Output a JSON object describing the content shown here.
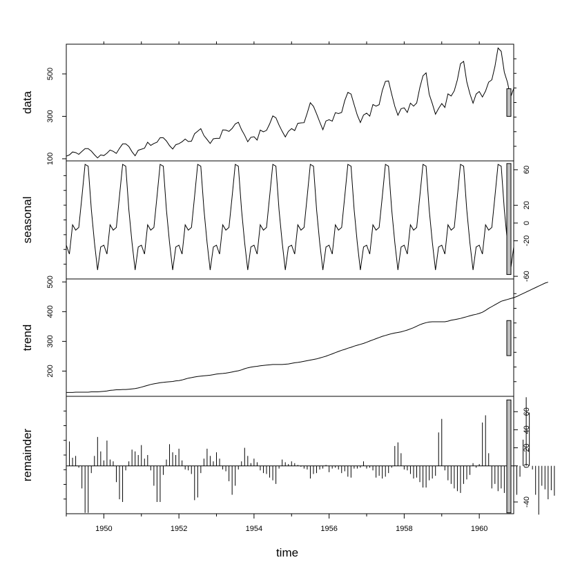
{
  "chart_data": {
    "type": "line",
    "title": "",
    "xlabel": "time",
    "x_range": [
      1949.0,
      1960.917
    ],
    "x_ticks": [
      "1950",
      "1952",
      "1954",
      "1956",
      "1958",
      "1960"
    ],
    "start_year": 1949,
    "frequency": 12,
    "panels": [
      {
        "name": "data",
        "type": "line",
        "ylabel": "data",
        "ylim": [
          90,
          640
        ],
        "y_ticks": [
          "100",
          "300",
          "500"
        ],
        "y_axis_side": "left",
        "range_bar": [
          300,
          430
        ],
        "values": [
          112,
          118,
          132,
          129,
          121,
          135,
          148,
          148,
          136,
          119,
          104,
          118,
          115,
          126,
          141,
          135,
          125,
          149,
          170,
          170,
          158,
          133,
          114,
          140,
          145,
          150,
          178,
          163,
          172,
          178,
          199,
          199,
          184,
          162,
          146,
          166,
          171,
          180,
          193,
          181,
          183,
          218,
          230,
          242,
          209,
          191,
          172,
          194,
          196,
          196,
          236,
          235,
          229,
          243,
          264,
          272,
          237,
          211,
          180,
          201,
          204,
          188,
          235,
          227,
          234,
          264,
          302,
          293,
          259,
          229,
          203,
          229,
          242,
          233,
          267,
          269,
          270,
          315,
          364,
          347,
          312,
          274,
          237,
          278,
          284,
          277,
          317,
          313,
          318,
          374,
          413,
          405,
          355,
          306,
          271,
          306,
          315,
          301,
          356,
          348,
          355,
          422,
          465,
          467,
          404,
          347,
          305,
          336,
          340,
          318,
          362,
          348,
          363,
          435,
          491,
          505,
          404,
          359,
          310,
          337,
          360,
          342,
          406,
          396,
          420,
          472,
          548,
          559,
          463,
          407,
          362,
          405,
          417,
          391,
          419,
          461,
          472,
          535,
          622,
          606,
          508,
          461,
          390,
          432
        ]
      },
      {
        "name": "seasonal",
        "type": "line",
        "ylabel": "seasonal",
        "ylim": [
          -63,
          70
        ],
        "y_ticks": [
          "-60",
          "-20",
          "0",
          "20",
          "60"
        ],
        "y_axis_side": "right",
        "range_bar": [
          -58,
          67
        ],
        "values": [
          -25,
          -35,
          -2,
          -8,
          -5,
          30,
          66,
          64,
          15,
          -22,
          -53,
          -27
        ]
      },
      {
        "name": "trend",
        "type": "line",
        "ylabel": "trend",
        "ylim": [
          115,
          510
        ],
        "y_ticks": [
          "200",
          "300",
          "400",
          "500"
        ],
        "y_axis_side": "left",
        "range_bar": [
          252,
          370
        ],
        "values": [
          128,
          128,
          128,
          129,
          129,
          129,
          129,
          129,
          130,
          130,
          130,
          131,
          132,
          133,
          135,
          136,
          137,
          137,
          138,
          138,
          139,
          140,
          141,
          143,
          146,
          149,
          152,
          155,
          157,
          159,
          161,
          162,
          163,
          164,
          165,
          167,
          168,
          170,
          173,
          176,
          178,
          180,
          182,
          183,
          184,
          185,
          186,
          188,
          190,
          191,
          192,
          193,
          195,
          197,
          199,
          201,
          204,
          208,
          211,
          213,
          215,
          216,
          218,
          219,
          220,
          221,
          222,
          222,
          222,
          222,
          223,
          224,
          226,
          228,
          229,
          231,
          233,
          235,
          237,
          239,
          241,
          244,
          247,
          250,
          254,
          258,
          262,
          266,
          270,
          273,
          277,
          280,
          284,
          287,
          290,
          293,
          297,
          301,
          305,
          309,
          313,
          317,
          320,
          323,
          326,
          328,
          330,
          332,
          335,
          338,
          342,
          346,
          351,
          356,
          360,
          363,
          365,
          366,
          366,
          366,
          366,
          366,
          368,
          371,
          373,
          375,
          377,
          380,
          383,
          386,
          389,
          391,
          394,
          398,
          404,
          411,
          417,
          423,
          429,
          435,
          438,
          441,
          444,
          447,
          451,
          456,
          461,
          466,
          471,
          476,
          481,
          486,
          491,
          496,
          499
        ]
      },
      {
        "name": "remainder",
        "type": "bar",
        "ylabel": "remainder",
        "ylim": [
          -53,
          77
        ],
        "y_ticks": [
          "-40",
          "0",
          "20",
          "40",
          "60"
        ],
        "y_axis_side": "right",
        "range_bar": [
          -52,
          73
        ],
        "values": [
          10,
          27,
          9,
          11,
          -2,
          -25,
          -52,
          -52,
          -8,
          11,
          32,
          16,
          6,
          28,
          7,
          5,
          -18,
          -37,
          -40,
          -5,
          5,
          18,
          16,
          12,
          23,
          8,
          12,
          -5,
          -22,
          -40,
          -40,
          -10,
          7,
          24,
          15,
          12,
          19,
          6,
          -4,
          -5,
          -9,
          -38,
          -35,
          -8,
          8,
          19,
          11,
          5,
          15,
          8,
          -4,
          -6,
          -17,
          -32,
          -22,
          -4,
          5,
          20,
          11,
          3,
          8,
          4,
          -5,
          -8,
          -9,
          -13,
          -16,
          -20,
          -3,
          7,
          4,
          2,
          5,
          3,
          1,
          -1,
          -3,
          -4,
          -14,
          -9,
          -8,
          -4,
          -3,
          1,
          -7,
          -3,
          -2,
          -4,
          -8,
          -6,
          -12,
          -13,
          -3,
          -3,
          -2,
          5,
          -3,
          -2,
          -5,
          -13,
          -11,
          -14,
          -12,
          -8,
          -2,
          22,
          26,
          14,
          -4,
          -5,
          -9,
          -14,
          -13,
          -18,
          -24,
          -24,
          -16,
          -14,
          -11,
          37,
          52,
          -5,
          -16,
          -20,
          -25,
          -28,
          -30,
          -20,
          -15,
          -10,
          3,
          -2,
          2,
          48,
          56,
          14,
          -25,
          -20,
          -28,
          -25,
          -30,
          -42,
          -46,
          -40,
          -32,
          -12,
          29,
          76,
          59,
          -4,
          -32,
          -54,
          -22,
          -26,
          -37,
          -27,
          -33
        ]
      }
    ]
  }
}
